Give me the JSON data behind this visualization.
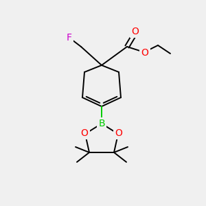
{
  "bg_color": "#f0f0f0",
  "atom_colors": {
    "O": "#ff0000",
    "F": "#cc00cc",
    "B": "#00cc00",
    "C": "#000000"
  },
  "line_color": "#000000",
  "figsize": [
    3.0,
    3.0
  ],
  "dpi": 100,
  "lw": 1.4
}
